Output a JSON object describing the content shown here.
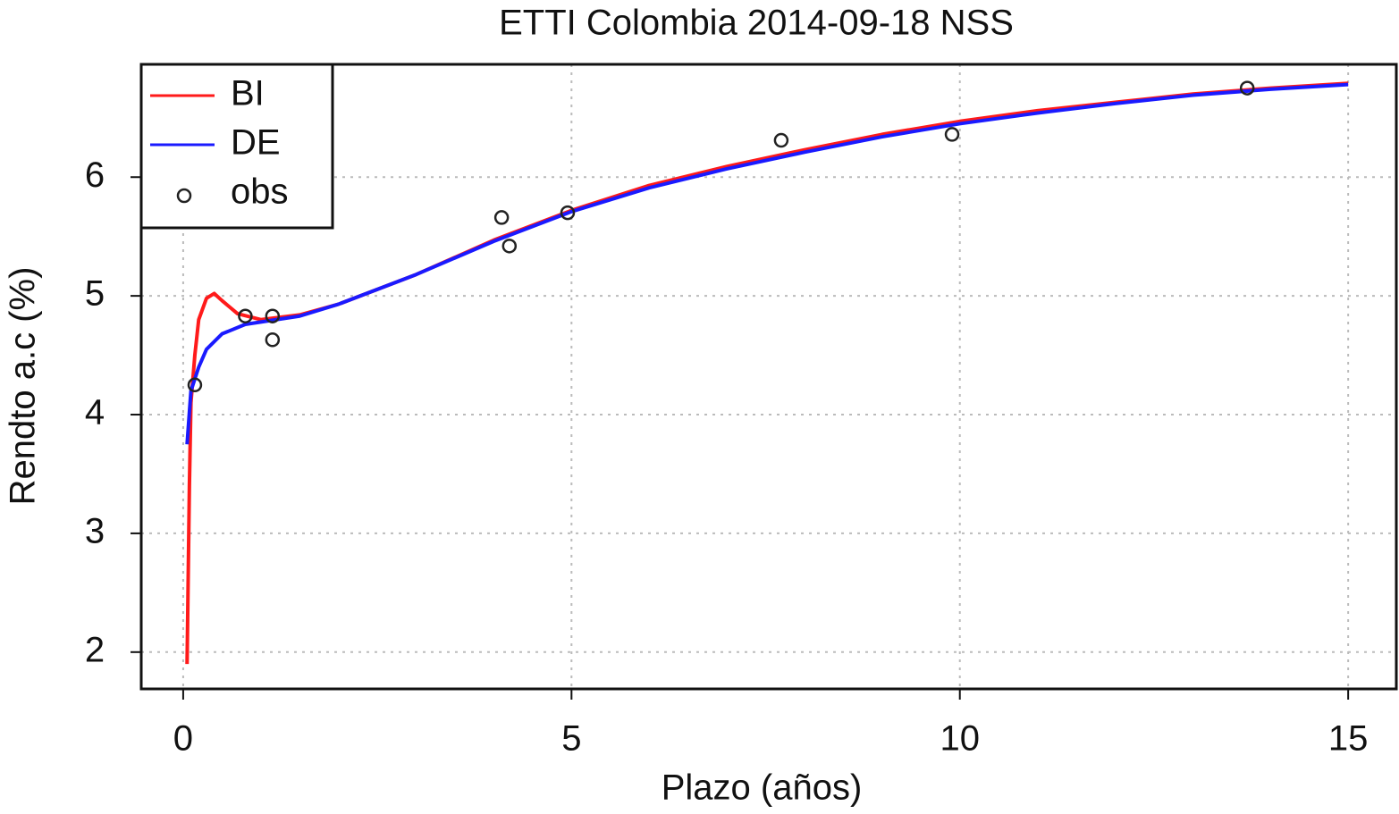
{
  "chart_data": {
    "type": "line",
    "title": "ETTI Colombia 2014-09-18 NSS",
    "x_label": "Plazo (años)",
    "y_label": "Rendto a.c (%)",
    "xlim": [
      -0.54,
      15.62
    ],
    "ylim": [
      1.69,
      6.95
    ],
    "xticks": [
      0,
      5,
      10,
      15
    ],
    "yticks": [
      2,
      3,
      4,
      5,
      6
    ],
    "grid": true,
    "legend": "top-left",
    "series": [
      {
        "name": "BI",
        "color": "#ff1a1a",
        "mode": "line",
        "x": [
          0.05,
          0.08,
          0.1,
          0.15,
          0.2,
          0.3,
          0.4,
          0.5,
          0.7,
          1.0,
          1.5,
          2,
          3,
          4,
          5,
          6,
          7,
          8,
          9,
          10,
          11,
          12,
          13,
          14,
          15
        ],
        "values": [
          1.9,
          3.4,
          4.1,
          4.5,
          4.8,
          4.98,
          5.02,
          4.96,
          4.85,
          4.8,
          4.84,
          4.93,
          5.18,
          5.47,
          5.72,
          5.93,
          6.09,
          6.23,
          6.36,
          6.47,
          6.56,
          6.63,
          6.7,
          6.75,
          6.79
        ]
      },
      {
        "name": "DE",
        "color": "#1a1aff",
        "mode": "line",
        "x": [
          0.05,
          0.1,
          0.2,
          0.3,
          0.5,
          0.8,
          1.0,
          1.5,
          2,
          3,
          4,
          5,
          6,
          7,
          8,
          9,
          10,
          11,
          12,
          13,
          14,
          15
        ],
        "values": [
          3.75,
          4.2,
          4.4,
          4.55,
          4.68,
          4.76,
          4.78,
          4.83,
          4.93,
          5.18,
          5.46,
          5.71,
          5.91,
          6.07,
          6.21,
          6.34,
          6.45,
          6.54,
          6.62,
          6.69,
          6.74,
          6.78
        ]
      },
      {
        "name": "obs",
        "color": "#222222",
        "mode": "points",
        "x": [
          0.15,
          0.8,
          1.15,
          1.15,
          4.1,
          4.2,
          4.95,
          7.7,
          9.9,
          13.7
        ],
        "values": [
          4.25,
          4.83,
          4.83,
          4.63,
          5.66,
          5.42,
          5.7,
          6.31,
          6.36,
          6.75
        ]
      }
    ]
  }
}
